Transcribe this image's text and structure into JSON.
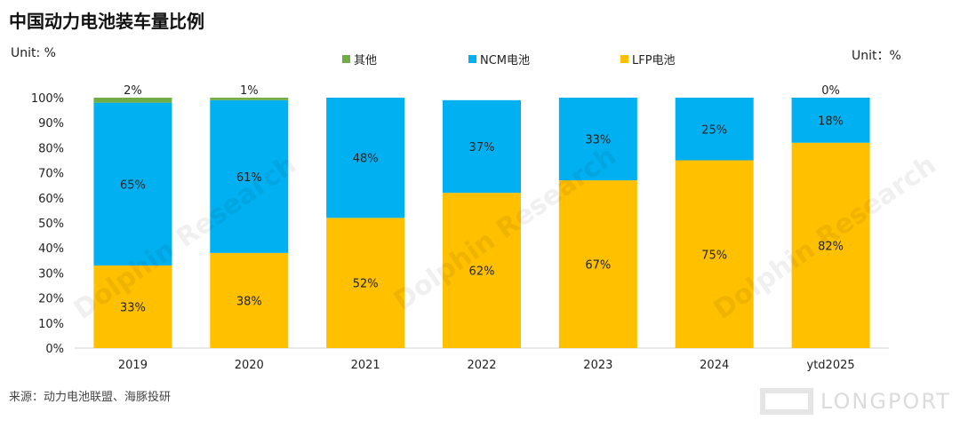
{
  "title": "中国动力电池装车量比例",
  "unit_left": "Unit: %",
  "unit_right": "Unit：%",
  "source": "来源：动力电池联盟、海豚投研",
  "watermark": "Dolphin Research",
  "logo_text": "LONGPORT",
  "colors": {
    "lfp": "#FFC000",
    "ncm": "#00B0F0",
    "other": "#70AD47"
  },
  "chart_data": {
    "type": "bar",
    "stacked": true,
    "title": "中国动力电池装车量比例",
    "categories": [
      "2019",
      "2020",
      "2021",
      "2022",
      "2023",
      "2024",
      "ytd2025"
    ],
    "series": [
      {
        "name": "LFP电池",
        "key": "lfp",
        "values": [
          33,
          38,
          52,
          62,
          67,
          75,
          82
        ]
      },
      {
        "name": "NCM电池",
        "key": "ncm",
        "values": [
          65,
          61,
          48,
          37,
          33,
          25,
          18
        ]
      },
      {
        "name": "其他",
        "key": "other",
        "values": [
          2,
          1,
          0,
          0,
          0,
          0,
          0
        ]
      }
    ],
    "ylim": [
      0,
      100
    ],
    "yticks": [
      "0%",
      "10%",
      "20%",
      "30%",
      "40%",
      "50%",
      "60%",
      "70%",
      "80%",
      "90%",
      "100%"
    ],
    "top_labels": [
      "2%",
      "1%",
      "",
      "",
      "",
      "",
      "0%"
    ],
    "legend_order": [
      "其他",
      "NCM电池",
      "LFP电池"
    ],
    "legend_position": "top"
  }
}
